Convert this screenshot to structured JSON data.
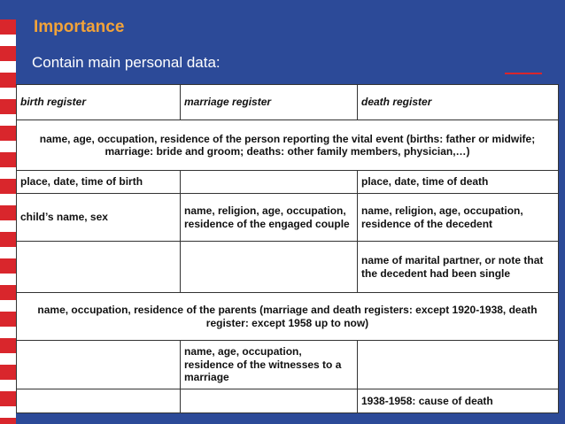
{
  "header": {
    "title": "Importance",
    "subtitle": "Contain main personal data:"
  },
  "table": {
    "columns": [
      "birth register",
      "marriage register",
      "death register"
    ],
    "rows": [
      [
        "name, age, occupation, residence of the person reporting the vital event (births: father or midwife; marriage: bride and groom; deaths: other family members, physician,…)"
      ],
      [
        "place, date, time of birth",
        null,
        "place, date, time of death"
      ],
      [
        "child’s name, sex",
        "name, religion, age, occupation, residence of the engaged couple",
        "name, religion, age, occupation, residence of the decedent"
      ],
      [
        null,
        null,
        "name of marital partner, or note that the decedent had been single"
      ],
      [
        "name, occupation, residence of the parents (marriage and death registers: except 1920-1938, death register: except 1958 up to now)"
      ],
      [
        null,
        "name, age, occupation, residence of the witnesses to a marriage",
        null
      ],
      [
        null,
        null,
        "1938-1958: cause of death"
      ]
    ]
  }
}
